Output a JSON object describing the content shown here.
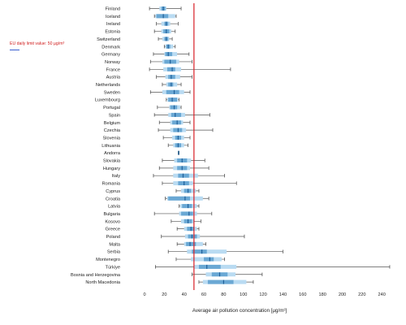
{
  "chart_data": {
    "type": "box",
    "xlabel": "Average air pollution concentration [µg/m³]",
    "xlim": [
      0,
      250
    ],
    "x_ticks": [
      0,
      20,
      40,
      60,
      80,
      100,
      120,
      140,
      160,
      180,
      200,
      220,
      240
    ],
    "limit_line": {
      "value": 50,
      "label": "EU daily limit value: 50 µg/m³",
      "color": "#d81f26"
    },
    "colors": {
      "whisker": "#555555",
      "outer": "#b9dbf2",
      "inner": "#6aa8d4",
      "median": "#1f5f99"
    },
    "categories": [
      "Finland",
      "Iceland",
      "Ireland",
      "Estonia",
      "Switzerland",
      "Denmark",
      "Germany",
      "Norway",
      "France",
      "Austria",
      "Netherlands",
      "Sweden",
      "Luxembourg",
      "Portugal",
      "Spain",
      "Belgium",
      "Czechia",
      "Slovenia",
      "Lithuania",
      "Andorra",
      "Slovakia",
      "Hungary",
      "Italy",
      "Romania",
      "Cyprus",
      "Croatia",
      "Latvia",
      "Bulgaria",
      "Kosovo",
      "Greece",
      "Poland",
      "Malta",
      "Serbia",
      "Montenegro",
      "Türkiye",
      "Bosnia and Herzegovina",
      "North Macedonia"
    ],
    "series": [
      {
        "country": "Finland",
        "min": 5,
        "q1": 15,
        "q3": 22,
        "max": 37,
        "median": 19,
        "p_low": 17,
        "p_high": 21
      },
      {
        "country": "Iceland",
        "min": 10,
        "q1": 11,
        "q3": 31,
        "max": 32,
        "median": 19,
        "p_low": 12,
        "p_high": 24
      },
      {
        "country": "Ireland",
        "min": 12,
        "q1": 17,
        "q3": 26,
        "max": 34,
        "median": 22,
        "p_low": 20,
        "p_high": 24
      },
      {
        "country": "Estonia",
        "min": 10,
        "q1": 17,
        "q3": 27,
        "max": 31,
        "median": 22,
        "p_low": 19,
        "p_high": 25
      },
      {
        "country": "Switzerland",
        "min": 14,
        "q1": 18,
        "q3": 25,
        "max": 28,
        "median": 22,
        "p_low": 20,
        "p_high": 24
      },
      {
        "country": "Denmark",
        "min": 20,
        "q1": 21,
        "q3": 29,
        "max": 31,
        "median": 24,
        "p_low": 22,
        "p_high": 26
      },
      {
        "country": "Germany",
        "min": 9,
        "q1": 20,
        "q3": 33,
        "max": 45,
        "median": 24,
        "p_low": 21,
        "p_high": 28
      },
      {
        "country": "Norway",
        "min": 6,
        "q1": 18,
        "q3": 35,
        "max": 48,
        "median": 26,
        "p_low": 20,
        "p_high": 32
      },
      {
        "country": "France",
        "min": 5,
        "q1": 19,
        "q3": 37,
        "max": 87,
        "median": 28,
        "p_low": 23,
        "p_high": 31
      },
      {
        "country": "Austria",
        "min": 12,
        "q1": 21,
        "q3": 36,
        "max": 48,
        "median": 27,
        "p_low": 24,
        "p_high": 31
      },
      {
        "country": "Netherlands",
        "min": 18,
        "q1": 22,
        "q3": 33,
        "max": 37,
        "median": 27,
        "p_low": 24,
        "p_high": 29
      },
      {
        "country": "Sweden",
        "min": 6,
        "q1": 18,
        "q3": 40,
        "max": 46,
        "median": 30,
        "p_low": 22,
        "p_high": 35
      },
      {
        "country": "Luxembourg",
        "min": 22,
        "q1": 23,
        "q3": 34,
        "max": 35,
        "median": 28,
        "p_low": 24,
        "p_high": 33
      },
      {
        "country": "Portugal",
        "min": 13,
        "q1": 25,
        "q3": 36,
        "max": 37,
        "median": 30,
        "p_low": 26,
        "p_high": 33
      },
      {
        "country": "Spain",
        "min": 10,
        "q1": 24,
        "q3": 41,
        "max": 66,
        "median": 31,
        "p_low": 27,
        "p_high": 37
      },
      {
        "country": "Belgium",
        "min": 15,
        "q1": 26,
        "q3": 39,
        "max": 46,
        "median": 33,
        "p_low": 28,
        "p_high": 37
      },
      {
        "country": "Czechia",
        "min": 14,
        "q1": 26,
        "q3": 42,
        "max": 69,
        "median": 34,
        "p_low": 29,
        "p_high": 38
      },
      {
        "country": "Slovenia",
        "min": 19,
        "q1": 28,
        "q3": 40,
        "max": 46,
        "median": 34,
        "p_low": 31,
        "p_high": 37
      },
      {
        "country": "Lithuania",
        "min": 24,
        "q1": 29,
        "q3": 40,
        "max": 44,
        "median": 34,
        "p_low": 31,
        "p_high": 37
      },
      {
        "country": "Andorra",
        "min": 34,
        "q1": 34,
        "q3": 35,
        "max": 35,
        "median": 34.5,
        "p_low": 34,
        "p_high": 35
      },
      {
        "country": "Slovakia",
        "min": 18,
        "q1": 30,
        "q3": 47,
        "max": 61,
        "median": 38,
        "p_low": 33,
        "p_high": 43
      },
      {
        "country": "Hungary",
        "min": 15,
        "q1": 29,
        "q3": 46,
        "max": 65,
        "median": 38,
        "p_low": 33,
        "p_high": 43
      },
      {
        "country": "Italy",
        "min": 9,
        "q1": 29,
        "q3": 54,
        "max": 81,
        "median": 39,
        "p_low": 34,
        "p_high": 45
      },
      {
        "country": "Romania",
        "min": 18,
        "q1": 29,
        "q3": 49,
        "max": 93,
        "median": 40,
        "p_low": 34,
        "p_high": 45
      },
      {
        "country": "Cyprus",
        "min": 32,
        "q1": 37,
        "q3": 52,
        "max": 55,
        "median": 44,
        "p_low": 40,
        "p_high": 47
      },
      {
        "country": "Croatia",
        "min": 21,
        "q1": 23,
        "q3": 59,
        "max": 65,
        "median": 41,
        "p_low": 24,
        "p_high": 46
      },
      {
        "country": "Latvia",
        "min": 35,
        "q1": 36,
        "q3": 53,
        "max": 55,
        "median": 44,
        "p_low": 38,
        "p_high": 48
      },
      {
        "country": "Bulgaria",
        "min": 10,
        "q1": 35,
        "q3": 53,
        "max": 68,
        "median": 45,
        "p_low": 37,
        "p_high": 49
      },
      {
        "country": "Kosovo",
        "min": 27,
        "q1": 37,
        "q3": 50,
        "max": 57,
        "median": 44,
        "p_low": 40,
        "p_high": 48
      },
      {
        "country": "Greece",
        "min": 33,
        "q1": 40,
        "q3": 53,
        "max": 55,
        "median": 47,
        "p_low": 43,
        "p_high": 50
      },
      {
        "country": "Poland",
        "min": 17,
        "q1": 41,
        "q3": 56,
        "max": 101,
        "median": 48,
        "p_low": 44,
        "p_high": 53
      },
      {
        "country": "Malta",
        "min": 33,
        "q1": 40,
        "q3": 59,
        "max": 62,
        "median": 46,
        "p_low": 42,
        "p_high": 52
      },
      {
        "country": "Serbia",
        "min": 24,
        "q1": 43,
        "q3": 83,
        "max": 140,
        "median": 58,
        "p_low": 48,
        "p_high": 63
      },
      {
        "country": "Montenegro",
        "min": 32,
        "q1": 47,
        "q3": 78,
        "max": 81,
        "median": 66,
        "p_low": 60,
        "p_high": 70
      },
      {
        "country": "Türkiye",
        "min": 11,
        "q1": 50,
        "q3": 93,
        "max": 248,
        "median": 63,
        "p_low": 55,
        "p_high": 77
      },
      {
        "country": "Bosnia and Herzegovina",
        "min": 48,
        "q1": 62,
        "q3": 92,
        "max": 119,
        "median": 76,
        "p_low": 68,
        "p_high": 84
      },
      {
        "country": "North Macedonia",
        "min": 55,
        "q1": 59,
        "q3": 103,
        "max": 110,
        "median": 80,
        "p_low": 64,
        "p_high": 90
      }
    ]
  }
}
